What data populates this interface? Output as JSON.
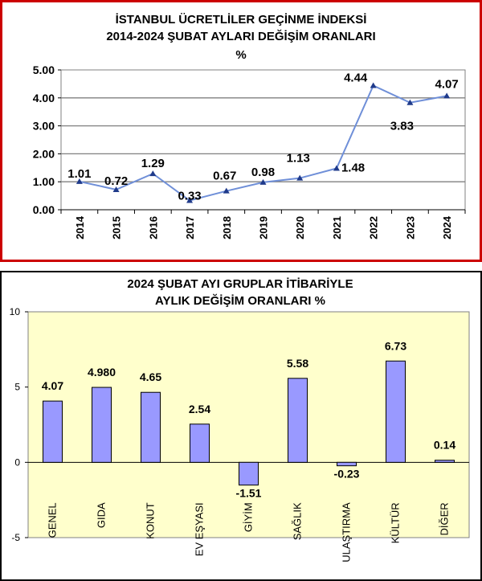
{
  "chart_data": [
    {
      "type": "line",
      "title": [
        "İSTANBUL ÜCRETLİLER GEÇİNME İNDEKSİ",
        "2014-2024 ŞUBAT AYLARI DEĞİŞİM ORANLARI",
        "%"
      ],
      "categories": [
        "2014",
        "2015",
        "2016",
        "2017",
        "2018",
        "2019",
        "2020",
        "2021",
        "2022",
        "2023",
        "2024"
      ],
      "values": [
        1.01,
        0.72,
        1.29,
        0.33,
        0.67,
        0.98,
        1.13,
        1.48,
        4.44,
        3.83,
        4.07
      ],
      "data_labels": [
        "1.01",
        "0.72",
        "1.29",
        "0.33",
        "0.67",
        "0.98",
        "1.13",
        "1.48",
        "4.44",
        "3.83",
        "4.07"
      ],
      "y_ticks": [
        "0.00",
        "1.00",
        "2.00",
        "3.00",
        "4.00",
        "5.00"
      ],
      "ylim": [
        0,
        5
      ],
      "grid": true,
      "colors": {
        "line": "#6f8fd8",
        "marker": "#1f3a8a",
        "plot_bg": "#ffffff",
        "border": "#cc0000"
      }
    },
    {
      "type": "bar",
      "title": [
        "2024 ŞUBAT AYI  GRUPLAR İTİBARİYLE",
        "AYLIK DEĞİŞİM  ORANLARI  %"
      ],
      "categories": [
        "GENEL",
        "GIDA",
        "KONUT",
        "EV EŞYASI",
        "GİYİM",
        "SAĞLIK",
        "ULAŞTIRMA",
        "KÜLTÜR",
        "DİĞER"
      ],
      "values": [
        4.07,
        4.98,
        4.65,
        2.54,
        -1.51,
        5.58,
        -0.23,
        6.73,
        0.14
      ],
      "data_labels": [
        "4.07",
        "4.980",
        "4.65",
        "2.54",
        "-1.51",
        "5.58",
        "-0.23",
        "6.73",
        "0.14"
      ],
      "y_ticks": [
        "-5",
        "0",
        "5",
        "10"
      ],
      "ylim": [
        -5,
        10
      ],
      "grid": false,
      "colors": {
        "bar": "#9999ff",
        "bar_stroke": "#000000",
        "plot_bg": "#ffffcc"
      }
    }
  ]
}
